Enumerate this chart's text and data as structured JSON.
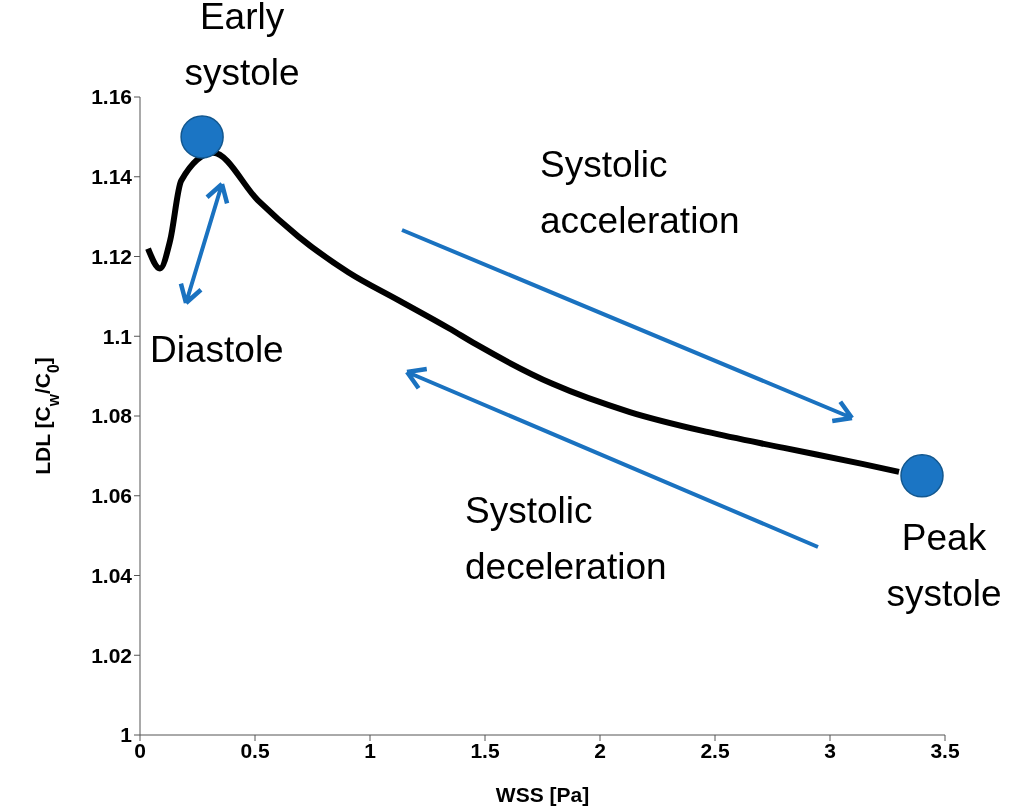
{
  "chart_data": {
    "type": "line",
    "xlabel": "WSS [Pa]",
    "ylabel": "LDL [C$_{w}$/C$_{0}$]",
    "xlim": [
      0,
      3.5
    ],
    "xticks": [
      0,
      0.5,
      1,
      1.5,
      2,
      2.5,
      3,
      3.5
    ],
    "ylim": [
      1,
      1.16
    ],
    "yticks": [
      1,
      1.02,
      1.04,
      1.06,
      1.08,
      1.1,
      1.12,
      1.14,
      1.16
    ],
    "series": [
      {
        "color": "#000000",
        "marker": "none",
        "x": [
          0.035,
          0.087,
          0.131,
          0.179,
          0.318,
          0.514,
          0.689,
          0.907,
          1.125,
          1.343,
          1.46,
          1.796,
          2.13,
          2.467,
          2.8,
          3.14,
          3.3
        ],
        "values": [
          1.122,
          1.117,
          1.124,
          1.139,
          1.146,
          1.134,
          1.125,
          1.116,
          1.109,
          1.102,
          1.098,
          1.088,
          1.081,
          1.076,
          1.072,
          1.068,
          1.066
        ]
      },
      {
        "type": "scatter",
        "color": "#1b75c4",
        "marker": "circle",
        "x": [
          0.27,
          3.4
        ],
        "values": [
          1.15,
          1.065
        ]
      }
    ],
    "annotations": [
      {
        "text": "Early systole",
        "x": 0.27,
        "y": 1.15
      },
      {
        "text": "Peak systole",
        "x": 3.4,
        "y": 1.065
      },
      "Diastole",
      "Systolic acceleration",
      "Systolic deceleration"
    ]
  }
}
